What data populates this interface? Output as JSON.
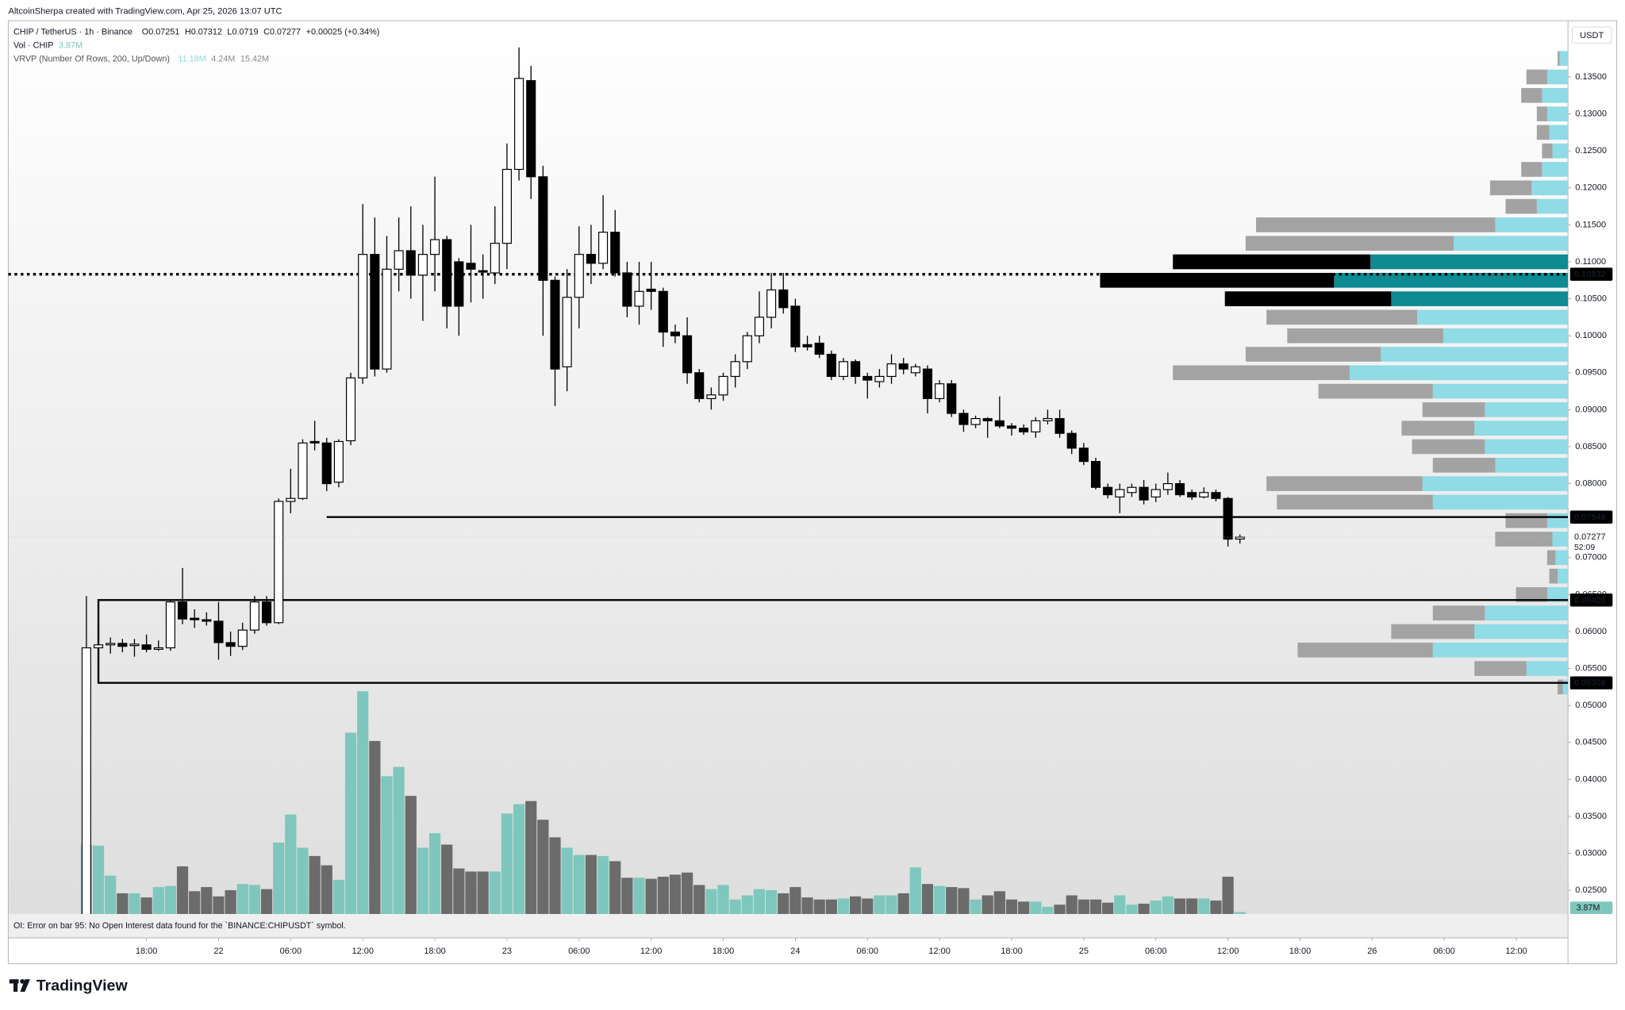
{
  "header": {
    "credit": "AltcoinSherpa created with TradingView.com, Apr 25, 2026 13:07 UTC",
    "symbol": "CHIP / TetherUS · 1h · Binance",
    "ohlc_labels": [
      "O",
      "H",
      "L",
      "C"
    ],
    "change": "+0.00025 (+0.34%)",
    "volume_title": "Vol · CHIP",
    "last_volume_label": "3.87M",
    "vrvp_title": "VRVP (Number Of Rows, 200, Up/Down)",
    "vrvp_values": [
      "11.18M",
      "4.24M",
      "15.42M"
    ]
  },
  "chart_data": {
    "type": "candlestick",
    "currency": "USDT",
    "up_color": "#ffffff",
    "down_color": "#000000",
    "open": [
      0.02,
      0.0578,
      0.0582,
      0.0584,
      0.0581,
      0.0582,
      0.0576,
      0.0578,
      0.064,
      0.0618,
      0.0616,
      0.0614,
      0.0585,
      0.058,
      0.0602,
      0.064,
      0.0612,
      0.0776,
      0.078,
      0.0857,
      0.0855,
      0.0802,
      0.0858,
      0.0943,
      0.111,
      0.0955,
      0.109,
      0.1115,
      0.1082,
      0.111,
      0.113,
      0.11,
      0.1098,
      0.1088,
      0.1085,
      0.1125,
      0.1225,
      0.1345,
      0.1215,
      0.1075,
      0.0958,
      0.1052,
      0.111,
      0.1098,
      0.114,
      0.1085,
      0.104,
      0.1063,
      0.106,
      0.1005,
      0.1,
      0.095,
      0.0915,
      0.092,
      0.0945,
      0.0965,
      0.1,
      0.1025,
      0.1062,
      0.104,
      0.0988,
      0.099,
      0.0975,
      0.0945,
      0.0965,
      0.0945,
      0.0938,
      0.0945,
      0.0962,
      0.095,
      0.0955,
      0.0915,
      0.0935,
      0.0895,
      0.088,
      0.0888,
      0.0885,
      0.0878,
      0.0875,
      0.087,
      0.0885,
      0.0888,
      0.0868,
      0.0848,
      0.083,
      0.0795,
      0.0782,
      0.0788,
      0.0795,
      0.0782,
      0.0792,
      0.08,
      0.0788,
      0.0782,
      0.0788,
      0.078,
      0.07251
    ],
    "high": [
      0.0648,
      0.064,
      0.0592,
      0.059,
      0.059,
      0.0596,
      0.0588,
      0.0642,
      0.0686,
      0.063,
      0.0626,
      0.064,
      0.06,
      0.0612,
      0.0648,
      0.0648,
      0.078,
      0.082,
      0.086,
      0.0885,
      0.0862,
      0.086,
      0.095,
      0.1178,
      0.116,
      0.1135,
      0.116,
      0.1175,
      0.115,
      0.1215,
      0.1135,
      0.1105,
      0.115,
      0.111,
      0.1175,
      0.126,
      0.139,
      0.1365,
      0.123,
      0.108,
      0.109,
      0.1148,
      0.115,
      0.119,
      0.117,
      0.11,
      0.11,
      0.11,
      0.1065,
      0.1015,
      0.1025,
      0.0955,
      0.093,
      0.095,
      0.0975,
      0.1005,
      0.106,
      0.1085,
      0.1085,
      0.105,
      0.1,
      0.1,
      0.098,
      0.097,
      0.0968,
      0.095,
      0.0955,
      0.0975,
      0.097,
      0.0962,
      0.096,
      0.094,
      0.094,
      0.09,
      0.0892,
      0.089,
      0.0918,
      0.0882,
      0.088,
      0.089,
      0.09,
      0.09,
      0.0872,
      0.0855,
      0.0835,
      0.08,
      0.08,
      0.08,
      0.0805,
      0.08,
      0.0815,
      0.0805,
      0.0792,
      0.0795,
      0.0792,
      0.0782,
      0.07312
    ],
    "low": [
      0.02,
      0.0565,
      0.057,
      0.0572,
      0.0566,
      0.0572,
      0.0574,
      0.0574,
      0.061,
      0.0605,
      0.0608,
      0.0562,
      0.0567,
      0.0575,
      0.0597,
      0.0608,
      0.061,
      0.076,
      0.0778,
      0.0845,
      0.079,
      0.0795,
      0.0852,
      0.0935,
      0.0945,
      0.095,
      0.106,
      0.105,
      0.102,
      0.106,
      0.101,
      0.1,
      0.1045,
      0.105,
      0.107,
      0.109,
      0.121,
      0.1185,
      0.1,
      0.0905,
      0.0925,
      0.101,
      0.107,
      0.109,
      0.108,
      0.1025,
      0.1015,
      0.1035,
      0.0985,
      0.099,
      0.0935,
      0.091,
      0.09,
      0.0912,
      0.093,
      0.0955,
      0.099,
      0.101,
      0.103,
      0.0978,
      0.098,
      0.097,
      0.094,
      0.094,
      0.0935,
      0.0915,
      0.093,
      0.0935,
      0.0948,
      0.0945,
      0.0895,
      0.091,
      0.089,
      0.087,
      0.0875,
      0.0862,
      0.0875,
      0.0865,
      0.0866,
      0.0862,
      0.088,
      0.0862,
      0.084,
      0.0825,
      0.0792,
      0.078,
      0.076,
      0.0782,
      0.0772,
      0.0775,
      0.0785,
      0.0782,
      0.0778,
      0.078,
      0.0776,
      0.0715,
      0.0719
    ],
    "close": [
      0.0578,
      0.0582,
      0.0584,
      0.058,
      0.0583,
      0.0576,
      0.0578,
      0.064,
      0.0617,
      0.0616,
      0.0614,
      0.0585,
      0.058,
      0.0602,
      0.064,
      0.0612,
      0.0776,
      0.078,
      0.0855,
      0.0855,
      0.08,
      0.0857,
      0.0943,
      0.111,
      0.0955,
      0.109,
      0.1115,
      0.1082,
      0.111,
      0.113,
      0.104,
      0.104,
      0.109,
      0.1086,
      0.1125,
      0.1225,
      0.1348,
      0.1215,
      0.1075,
      0.0955,
      0.1052,
      0.111,
      0.1098,
      0.114,
      0.1085,
      0.104,
      0.106,
      0.106,
      0.1005,
      0.1,
      0.095,
      0.0915,
      0.092,
      0.0945,
      0.0965,
      0.1,
      0.1025,
      0.1062,
      0.1038,
      0.0985,
      0.0985,
      0.0975,
      0.0945,
      0.0965,
      0.0945,
      0.094,
      0.0945,
      0.0962,
      0.0955,
      0.0958,
      0.0915,
      0.0935,
      0.0895,
      0.088,
      0.0888,
      0.0885,
      0.0878,
      0.0875,
      0.087,
      0.0885,
      0.0888,
      0.0868,
      0.0848,
      0.083,
      0.0795,
      0.0785,
      0.0792,
      0.0795,
      0.0778,
      0.0792,
      0.08,
      0.0785,
      0.0782,
      0.0788,
      0.078,
      0.0725,
      0.07277
    ],
    "volume": {
      "up_color": "#7fc7bd",
      "down_color": "#6b6b6b",
      "values": [
        134,
        132,
        74,
        40,
        40,
        32,
        52,
        54,
        92,
        44,
        52,
        34,
        46,
        58,
        56,
        48,
        138,
        192,
        128,
        112,
        94,
        66,
        350,
        430,
        334,
        266,
        284,
        228,
        128,
        156,
        134,
        88,
        82,
        82,
        82,
        194,
        212,
        218,
        182,
        148,
        128,
        114,
        114,
        112,
        102,
        70,
        70,
        68,
        72,
        76,
        80,
        56,
        48,
        56,
        28,
        36,
        48,
        46,
        40,
        52,
        32,
        28,
        28,
        30,
        34,
        30,
        36,
        36,
        40,
        90,
        58,
        54,
        52,
        50,
        28,
        36,
        44,
        28,
        24,
        24,
        14,
        18,
        36,
        28,
        28,
        22,
        36,
        18,
        20,
        26,
        34,
        30,
        30,
        30,
        26,
        72,
        3.87
      ]
    },
    "vrvp": {
      "up_color": "#8fdbe6",
      "down_color": "#a3a3a3",
      "poc_up_color": "#0e8a92",
      "poc_down_color": "#000000",
      "prices": [
        0.1375,
        0.135,
        0.1325,
        0.13,
        0.1275,
        0.125,
        0.1225,
        0.12,
        0.1175,
        0.115,
        0.1125,
        0.11,
        0.1075,
        0.105,
        0.1025,
        0.1,
        0.0975,
        0.095,
        0.0925,
        0.09,
        0.0875,
        0.085,
        0.0825,
        0.08,
        0.0775,
        0.075,
        0.0725,
        0.07,
        0.0675,
        0.065,
        0.0625,
        0.06,
        0.0575,
        0.055,
        0.0525
      ],
      "up": [
        8,
        20,
        25,
        20,
        18,
        15,
        25,
        35,
        30,
        70,
        110,
        190,
        225,
        170,
        145,
        120,
        180,
        210,
        130,
        80,
        90,
        80,
        70,
        140,
        130,
        20,
        15,
        12,
        10,
        20,
        80,
        90,
        130,
        40,
        5
      ],
      "down": [
        2,
        20,
        20,
        10,
        12,
        10,
        20,
        40,
        30,
        230,
        200,
        190,
        225,
        160,
        145,
        150,
        130,
        170,
        110,
        60,
        70,
        70,
        60,
        150,
        150,
        40,
        55,
        8,
        8,
        30,
        50,
        80,
        130,
        50,
        5
      ]
    },
    "hlines": [
      {
        "price": 0.10832,
        "style": "dotted",
        "start_bar": -6.5
      },
      {
        "price": 0.07548,
        "style": "solid",
        "start_bar": 20
      }
    ],
    "zones": [
      {
        "high": 0.06426,
        "low": 0.05306,
        "start_bar": 1
      }
    ],
    "countdown": "52:09",
    "ylim": [
      0.0218,
      0.1426
    ],
    "yticks": [
      {
        "value": 0.135,
        "label": "0.13500"
      },
      {
        "value": 0.13,
        "label": "0.13000"
      },
      {
        "value": 0.125,
        "label": "0.12500"
      },
      {
        "value": 0.12,
        "label": "0.12000"
      },
      {
        "value": 0.115,
        "label": "0.11500"
      },
      {
        "value": 0.11,
        "label": "0.11000"
      },
      {
        "value": 0.105,
        "label": "0.10500"
      },
      {
        "value": 0.1,
        "label": "0.10000"
      },
      {
        "value": 0.095,
        "label": "0.09500"
      },
      {
        "value": 0.09,
        "label": "0.09000"
      },
      {
        "value": 0.085,
        "label": "0.08500"
      },
      {
        "value": 0.08,
        "label": "0.08000"
      },
      {
        "value": 0.07,
        "label": "0.07000"
      },
      {
        "value": 0.065,
        "label": "0.06500"
      },
      {
        "value": 0.06,
        "label": "0.06000"
      },
      {
        "value": 0.055,
        "label": "0.05500"
      },
      {
        "value": 0.05,
        "label": "0.05000"
      },
      {
        "value": 0.045,
        "label": "0.04500"
      },
      {
        "value": 0.04,
        "label": "0.04000"
      },
      {
        "value": 0.035,
        "label": "0.03500"
      },
      {
        "value": 0.03,
        "label": "0.03000"
      },
      {
        "value": 0.025,
        "label": "0.02500"
      }
    ],
    "xlim": [
      -6.5,
      123.3
    ],
    "xticks": [
      {
        "value": 5,
        "label": "18:00"
      },
      {
        "value": 11,
        "label": "22"
      },
      {
        "value": 17,
        "label": "06:00"
      },
      {
        "value": 23,
        "label": "12:00"
      },
      {
        "value": 29,
        "label": "18:00"
      },
      {
        "value": 35,
        "label": "23"
      },
      {
        "value": 41,
        "label": "06:00"
      },
      {
        "value": 47,
        "label": "12:00"
      },
      {
        "value": 53,
        "label": "18:00"
      },
      {
        "value": 59,
        "label": "24"
      },
      {
        "value": 65,
        "label": "06:00"
      },
      {
        "value": 71,
        "label": "12:00"
      },
      {
        "value": 77,
        "label": "18:00"
      },
      {
        "value": 83,
        "label": "25"
      },
      {
        "value": 89,
        "label": "06:00"
      },
      {
        "value": 95,
        "label": "12:00"
      },
      {
        "value": 101,
        "label": "18:00"
      },
      {
        "value": 107,
        "label": "26"
      },
      {
        "value": 113,
        "label": "06:00"
      },
      {
        "value": 119,
        "label": "12:00"
      }
    ]
  },
  "footer": {
    "oi_error": "OI: Error on bar 95: No Open Interest data found for the `BINANCE:CHIPUSDT` symbol.",
    "brand": "TradingView"
  }
}
